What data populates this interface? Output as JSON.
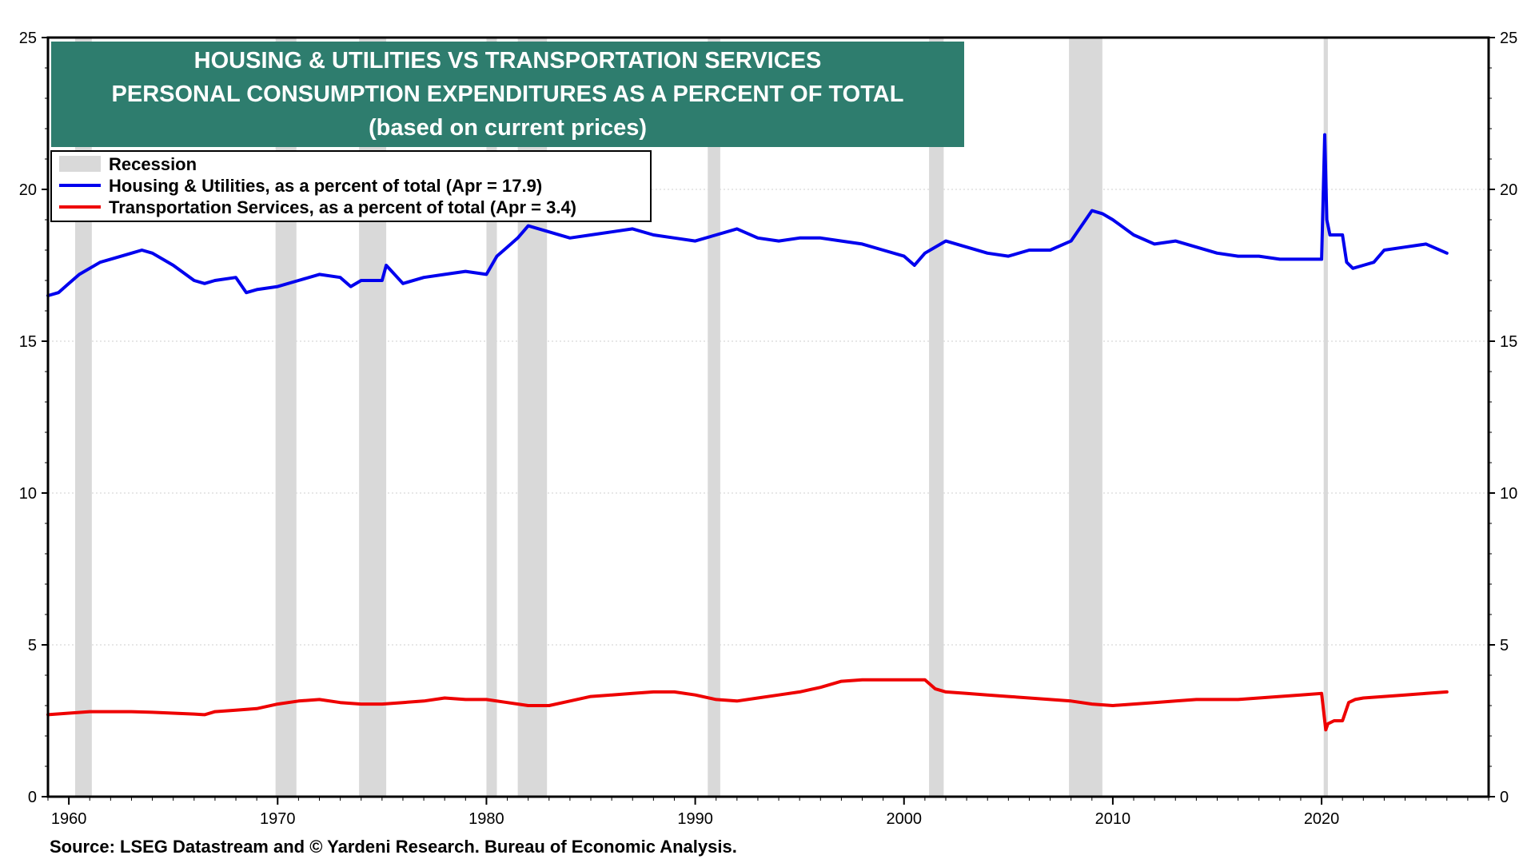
{
  "chart_data": {
    "type": "line",
    "title": [
      "HOUSING & UTILITIES VS TRANSPORTATION SERVICES",
      "PERSONAL CONSUMPTION EXPENDITURES AS A PERCENT OF TOTAL",
      "(based on current prices)"
    ],
    "source": "Source: LSEG Datastream and © Yardeni Research. Bureau of Economic Analysis.",
    "xlim": [
      1959,
      2028
    ],
    "ylim": [
      0,
      25
    ],
    "x_ticks": [
      "1960",
      "1970",
      "1980",
      "1990",
      "2000",
      "2010",
      "2020"
    ],
    "y_ticks": [
      "0",
      "5",
      "10",
      "15",
      "20",
      "25"
    ],
    "grid": true,
    "dual_y_axis": true,
    "legend_position": "top-left",
    "legend": [
      {
        "label": "Recession",
        "color": "#d9d9d9",
        "kind": "band"
      },
      {
        "label": "Housing & Utilities, as a percent of total (Apr = 17.9)",
        "color": "#0000ee",
        "kind": "line"
      },
      {
        "label": "Transportation Services, as a percent of total (Apr = 3.4)",
        "color": "#ee0000",
        "kind": "line"
      }
    ],
    "title_box_color": "#2e7d6e",
    "recessions": [
      [
        1960.3,
        1961.1
      ],
      [
        1969.9,
        1970.9
      ],
      [
        1973.9,
        1975.2
      ],
      [
        1980.0,
        1980.5
      ],
      [
        1981.5,
        1982.9
      ],
      [
        1990.6,
        1991.2
      ],
      [
        2001.2,
        2001.9
      ],
      [
        2007.9,
        2009.5
      ],
      [
        2020.1,
        2020.3
      ]
    ],
    "series": [
      {
        "name": "Housing & Utilities, as a percent of total (Apr = 17.9)",
        "color": "#0000ee",
        "x": [
          1959,
          1959.5,
          1960,
          1960.5,
          1961,
          1961.5,
          1962,
          1963,
          1963.5,
          1964,
          1965,
          1966,
          1966.5,
          1967,
          1968,
          1968.5,
          1969,
          1970,
          1971,
          1972,
          1973,
          1973.5,
          1974,
          1975,
          1975.2,
          1976,
          1977,
          1978,
          1979,
          1980,
          1980.5,
          1981,
          1981.5,
          1982,
          1983,
          1984,
          1985,
          1986,
          1987,
          1988,
          1989,
          1990,
          1991,
          1992,
          1993,
          1994,
          1995,
          1996,
          1997,
          1998,
          1999,
          2000,
          2000.5,
          2001,
          2002,
          2003,
          2004,
          2005,
          2006,
          2007,
          2008,
          2009,
          2009.5,
          2010,
          2011,
          2012,
          2013,
          2014,
          2015,
          2016,
          2017,
          2018,
          2019,
          2020,
          2020.15,
          2020.25,
          2020.4,
          2020.6,
          2021,
          2021.2,
          2021.5,
          2022,
          2022.5,
          2023,
          2024,
          2025,
          2026
        ],
        "values": [
          16.5,
          16.6,
          16.9,
          17.2,
          17.4,
          17.6,
          17.7,
          17.9,
          18.0,
          17.9,
          17.5,
          17.0,
          16.9,
          17.0,
          17.1,
          16.6,
          16.7,
          16.8,
          17.0,
          17.2,
          17.1,
          16.8,
          17.0,
          17.0,
          17.5,
          16.9,
          17.1,
          17.2,
          17.3,
          17.2,
          17.8,
          18.1,
          18.4,
          18.8,
          18.6,
          18.4,
          18.5,
          18.6,
          18.7,
          18.5,
          18.4,
          18.3,
          18.5,
          18.7,
          18.4,
          18.3,
          18.4,
          18.4,
          18.3,
          18.2,
          18.0,
          17.8,
          17.5,
          17.9,
          18.3,
          18.1,
          17.9,
          17.8,
          18.0,
          18.0,
          18.3,
          19.3,
          19.2,
          19.0,
          18.5,
          18.2,
          18.3,
          18.1,
          17.9,
          17.8,
          17.8,
          17.7,
          17.7,
          17.7,
          21.8,
          19.0,
          18.5,
          18.5,
          18.5,
          17.6,
          17.4,
          17.5,
          17.6,
          18.0,
          18.1,
          18.2,
          17.9
        ]
      },
      {
        "name": "Transportation Services, as a percent of total (Apr = 3.4)",
        "color": "#ee0000",
        "x": [
          1959,
          1960,
          1961,
          1962,
          1963,
          1964,
          1965,
          1966,
          1966.5,
          1967,
          1968,
          1969,
          1970,
          1971,
          1972,
          1973,
          1974,
          1975,
          1976,
          1977,
          1978,
          1979,
          1980,
          1981,
          1982,
          1983,
          1984,
          1985,
          1986,
          1987,
          1988,
          1989,
          1990,
          1991,
          1992,
          1993,
          1994,
          1995,
          1996,
          1997,
          1998,
          1999,
          2000,
          2001,
          2001.5,
          2002,
          2003,
          2004,
          2005,
          2006,
          2007,
          2008,
          2009,
          2010,
          2011,
          2012,
          2013,
          2014,
          2015,
          2016,
          2017,
          2018,
          2019,
          2020,
          2020.2,
          2020.3,
          2020.6,
          2021,
          2021.3,
          2021.6,
          2022,
          2023,
          2024,
          2025,
          2026
        ],
        "values": [
          2.7,
          2.75,
          2.8,
          2.8,
          2.8,
          2.78,
          2.75,
          2.72,
          2.7,
          2.8,
          2.85,
          2.9,
          3.05,
          3.15,
          3.2,
          3.1,
          3.05,
          3.05,
          3.1,
          3.15,
          3.25,
          3.2,
          3.2,
          3.1,
          3.0,
          3.0,
          3.15,
          3.3,
          3.35,
          3.4,
          3.45,
          3.45,
          3.35,
          3.2,
          3.15,
          3.25,
          3.35,
          3.45,
          3.6,
          3.8,
          3.85,
          3.85,
          3.85,
          3.85,
          3.55,
          3.45,
          3.4,
          3.35,
          3.3,
          3.25,
          3.2,
          3.15,
          3.05,
          3.0,
          3.05,
          3.1,
          3.15,
          3.2,
          3.2,
          3.2,
          3.25,
          3.3,
          3.35,
          3.4,
          2.2,
          2.4,
          2.5,
          2.5,
          3.1,
          3.2,
          3.25,
          3.3,
          3.35,
          3.4,
          3.45
        ]
      }
    ]
  }
}
